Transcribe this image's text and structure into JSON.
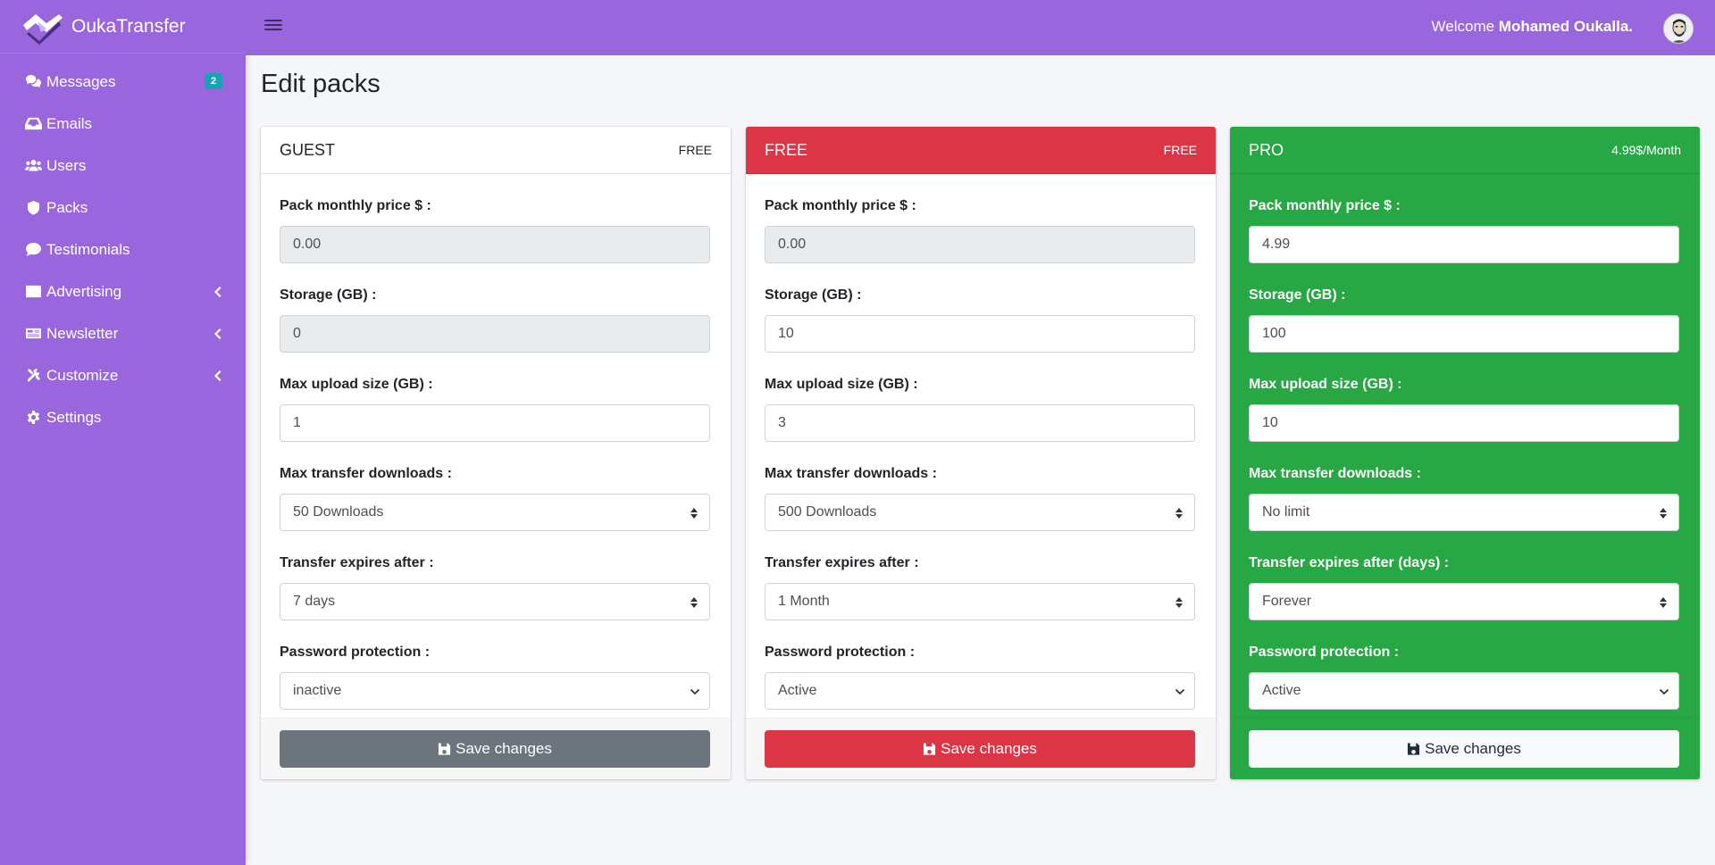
{
  "app": {
    "brand": "OukaTransfer"
  },
  "topbar": {
    "welcome_prefix": "Welcome",
    "user_name": "Mohamed Oukalla."
  },
  "sidebar": {
    "items": [
      {
        "label": "Messages",
        "icon": "comments-icon",
        "badge": "2"
      },
      {
        "label": "Emails",
        "icon": "inbox-icon"
      },
      {
        "label": "Users",
        "icon": "users-icon"
      },
      {
        "label": "Packs",
        "icon": "shield-icon"
      },
      {
        "label": "Testimonials",
        "icon": "comment-icon"
      },
      {
        "label": "Advertising",
        "icon": "ad-icon",
        "expandable": true
      },
      {
        "label": "Newsletter",
        "icon": "newspaper-icon",
        "expandable": true
      },
      {
        "label": "Customize",
        "icon": "tools-icon",
        "expandable": true
      },
      {
        "label": "Settings",
        "icon": "gear-icon"
      }
    ]
  },
  "page": {
    "title": "Edit packs"
  },
  "packs": [
    {
      "name": "GUEST",
      "price_tag": "FREE",
      "price_label": "Pack monthly price $ :",
      "price": "0.00",
      "storage_label": "Storage (GB) :",
      "storage": "0",
      "upload_label": "Max upload size (GB) :",
      "upload": "1",
      "downloads_label": "Max transfer downloads :",
      "downloads": "50 Downloads",
      "expires_label": "Transfer expires after :",
      "expires": "7 days",
      "password_label": "Password protection :",
      "password": "inactive",
      "save_label": "Save changes"
    },
    {
      "name": "FREE",
      "price_tag": "FREE",
      "price_label": "Pack monthly price $ :",
      "price": "0.00",
      "storage_label": "Storage (GB) :",
      "storage": "10",
      "upload_label": "Max upload size (GB) :",
      "upload": "3",
      "downloads_label": "Max transfer downloads :",
      "downloads": "500 Downloads",
      "expires_label": "Transfer expires after :",
      "expires": "1 Month",
      "password_label": "Password protection :",
      "password": "Active",
      "save_label": "Save changes"
    },
    {
      "name": "PRO",
      "price_tag": "4.99$/Month",
      "price_label": "Pack monthly price $ :",
      "price": "4.99",
      "storage_label": "Storage (GB) :",
      "storage": "100",
      "upload_label": "Max upload size (GB) :",
      "upload": "10",
      "downloads_label": "Max transfer downloads :",
      "downloads": "No limit",
      "expires_label": "Transfer expires after (days) :",
      "expires": "Forever",
      "password_label": "Password protection :",
      "password": "Active",
      "save_label": "Save changes"
    }
  ],
  "colors": {
    "sidebar": "#9966dd",
    "guest_button": "#6c757d",
    "free_header": "#dc3545",
    "pro_card": "#28a745",
    "badge": "#17a2b8"
  }
}
